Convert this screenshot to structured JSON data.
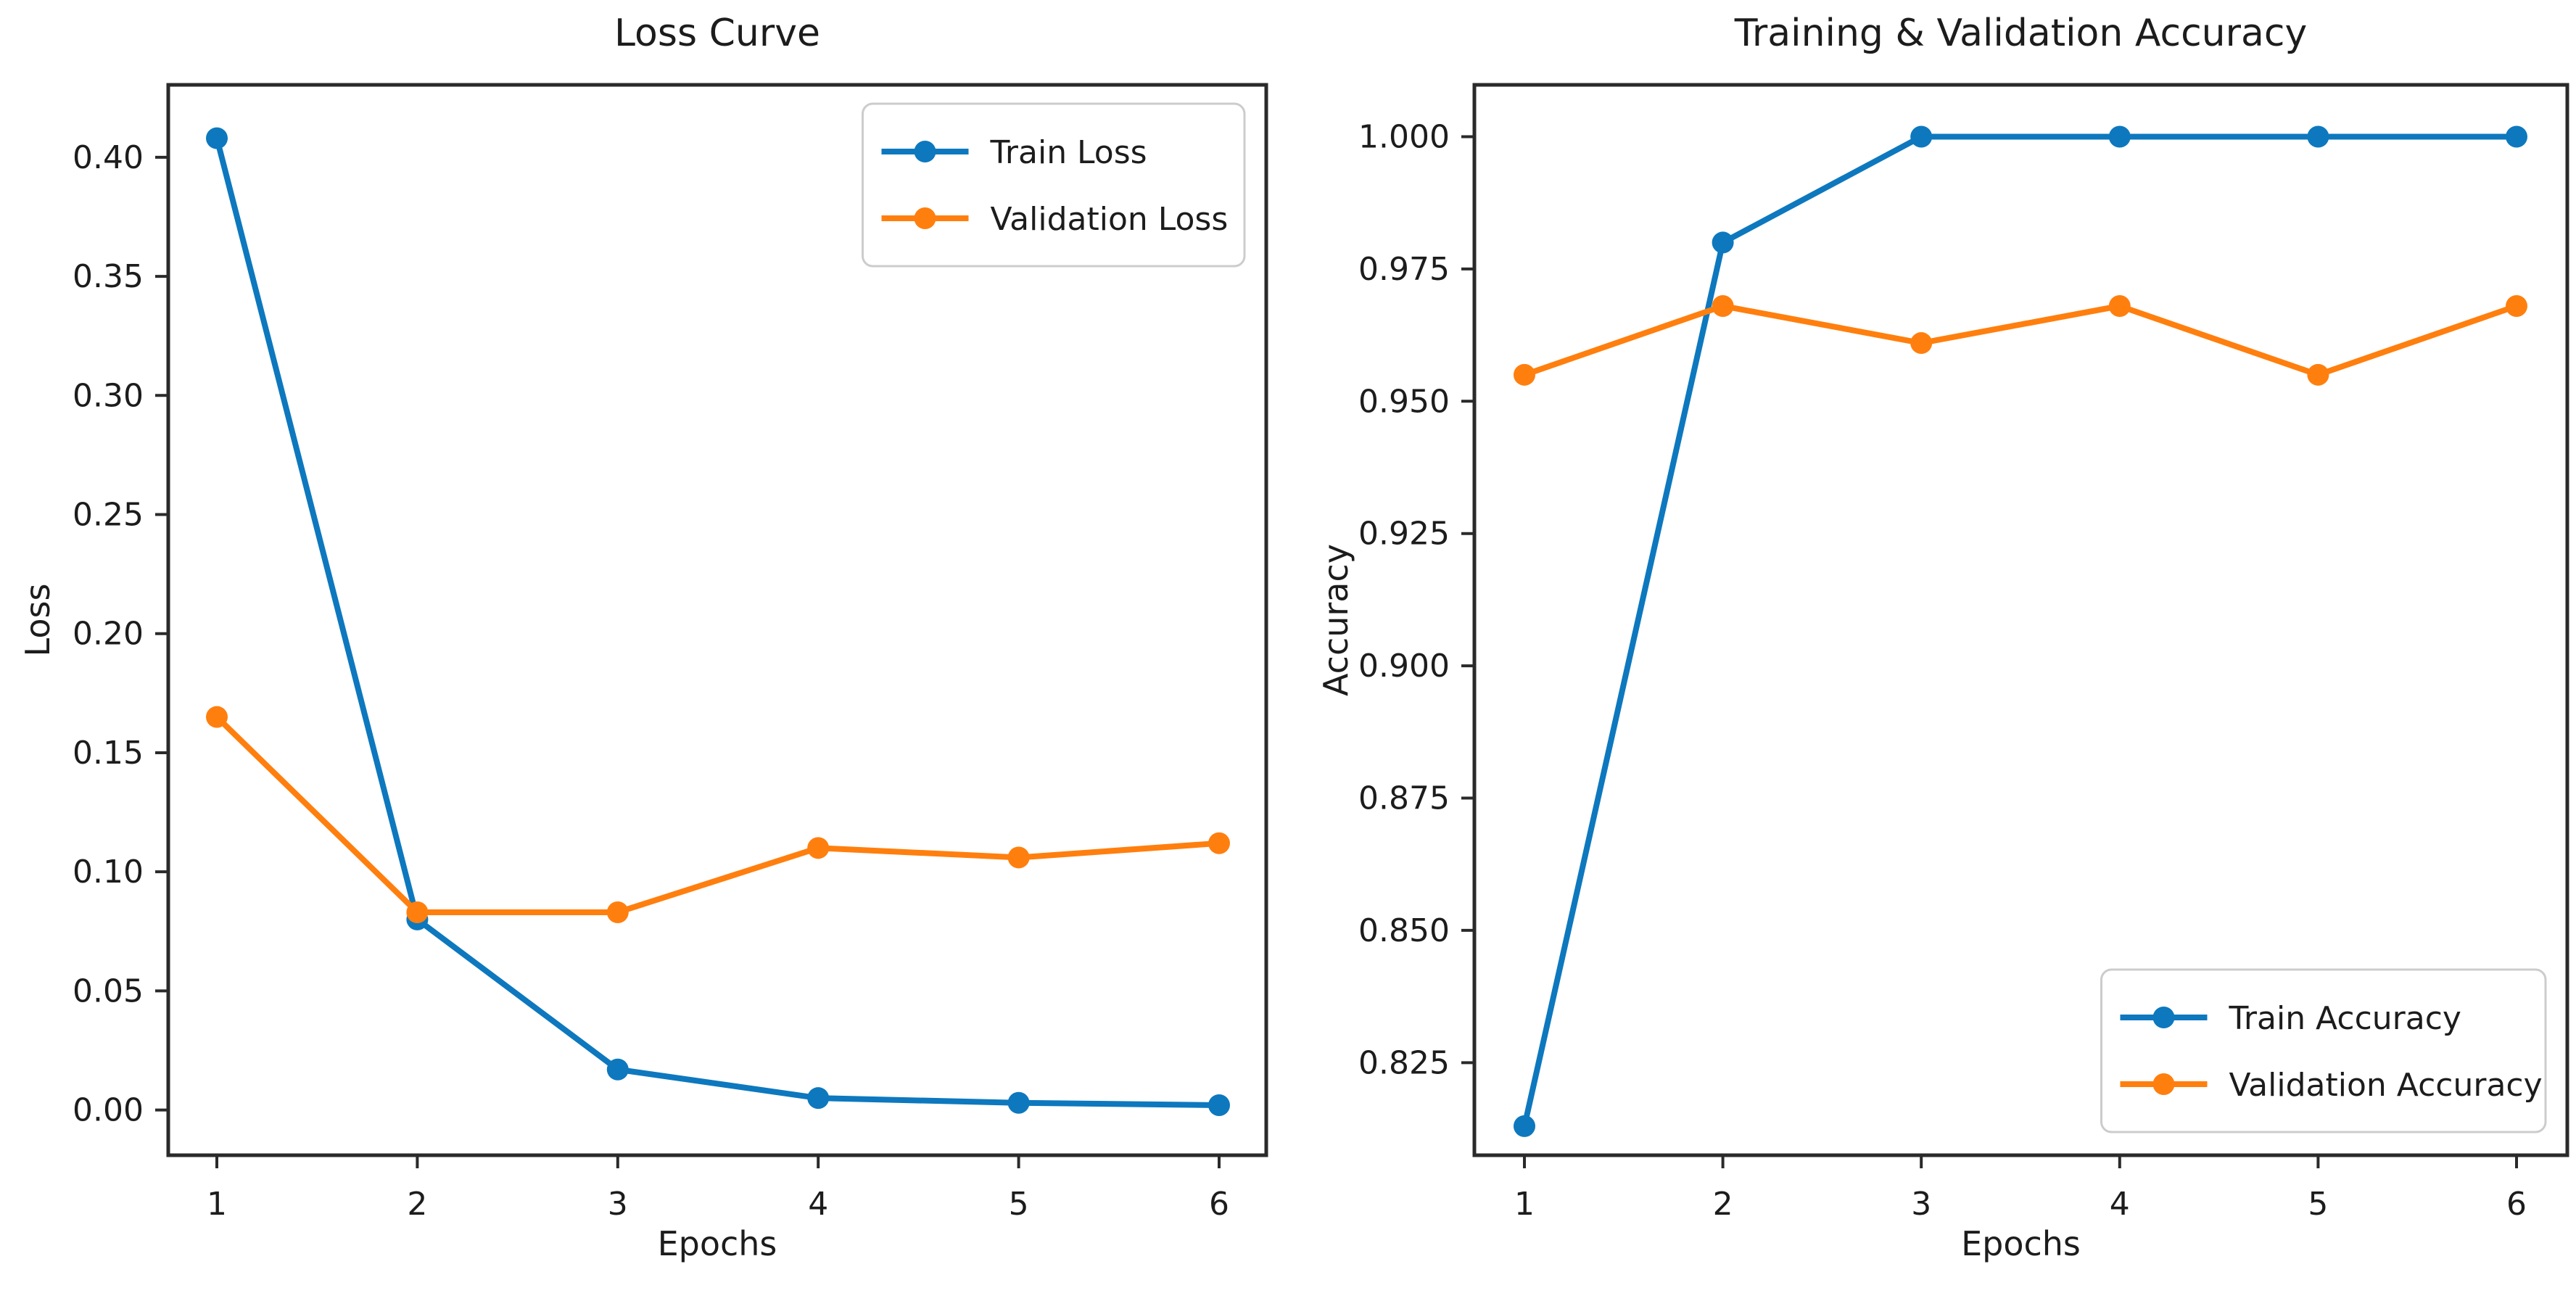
{
  "figure": {
    "background": "#ffffff",
    "text_color": "#1c1c1c",
    "spine_color": "#2a2a2a",
    "legend_border_color": "#cccccc"
  },
  "chart_data": [
    {
      "type": "line",
      "title": "Loss Curve",
      "xlabel": "Epochs",
      "ylabel": "Loss",
      "x": [
        1,
        2,
        3,
        4,
        5,
        6
      ],
      "ylim": [
        -0.019,
        0.4304
      ],
      "ytick_values": [
        0.0,
        0.05,
        0.1,
        0.15,
        0.2,
        0.25,
        0.3,
        0.35,
        0.4
      ],
      "yticks": [
        "0.00",
        "0.05",
        "0.10",
        "0.15",
        "0.20",
        "0.25",
        "0.30",
        "0.35",
        "0.40"
      ],
      "grid": false,
      "legend_position": "upper-right",
      "series": [
        {
          "name": "Train Loss",
          "color": "#0d78be",
          "values": [
            0.408,
            0.08,
            0.017,
            0.005,
            0.003,
            0.002
          ]
        },
        {
          "name": "Validation Loss",
          "color": "#ff7f0e",
          "values": [
            0.165,
            0.083,
            0.083,
            0.11,
            0.106,
            0.112
          ]
        }
      ]
    },
    {
      "type": "line",
      "title": "Training & Validation Accuracy",
      "xlabel": "Epochs",
      "ylabel": "Accuracy",
      "x": [
        1,
        2,
        3,
        4,
        5,
        6
      ],
      "ylim": [
        0.8075,
        1.0098
      ],
      "ytick_values": [
        0.825,
        0.85,
        0.875,
        0.9,
        0.925,
        0.95,
        0.975,
        1.0
      ],
      "yticks": [
        "0.825",
        "0.850",
        "0.875",
        "0.900",
        "0.925",
        "0.950",
        "0.975",
        "1.000"
      ],
      "grid": false,
      "legend_position": "lower-right",
      "series": [
        {
          "name": "Train Accuracy",
          "color": "#0d78be",
          "values": [
            0.813,
            0.98,
            1.0,
            1.0,
            1.0,
            1.0
          ]
        },
        {
          "name": "Validation Accuracy",
          "color": "#ff7f0e",
          "values": [
            0.955,
            0.968,
            0.961,
            0.968,
            0.955,
            0.968
          ]
        }
      ]
    }
  ]
}
